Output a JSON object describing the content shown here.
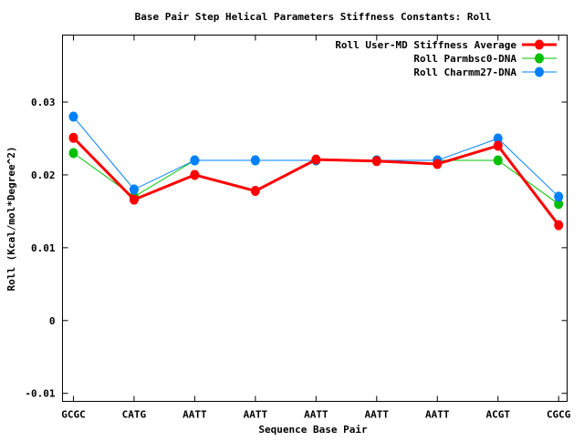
{
  "chart_data": {
    "type": "line",
    "title": "Base Pair Step Helical Parameters Stiffness Constants: Roll",
    "xlabel": "Sequence Base Pair",
    "ylabel": "Roll (Kcal/mol*Degree^2)",
    "categories": [
      "GCGC",
      "CATG",
      "AATT",
      "AATT",
      "AATT",
      "AATT",
      "AATT",
      "ACGT",
      "CGCG"
    ],
    "yticks": [
      -0.01,
      0,
      0.01,
      0.02,
      0.03
    ],
    "ytick_labels": [
      "-0.01",
      "0",
      "0.01",
      "0.02",
      "0.03"
    ],
    "ylim": [
      -0.0111,
      0.0392
    ],
    "grid": false,
    "legend_position": "top-right",
    "series": [
      {
        "name": "Roll User-MD Stiffness Average",
        "color": "#ff0000",
        "width": 3,
        "values": [
          0.0251,
          0.0166,
          0.02,
          0.0178,
          0.0221,
          0.0219,
          0.0215,
          0.024,
          0.0131
        ]
      },
      {
        "name": "Roll Parmbsc0-DNA",
        "color": "#00c000",
        "width": 1,
        "values": [
          0.023,
          0.017,
          0.022,
          0.022,
          0.022,
          0.022,
          0.022,
          0.022,
          0.016
        ]
      },
      {
        "name": "Roll Charmm27-DNA",
        "color": "#0080ff",
        "width": 1,
        "values": [
          0.028,
          0.018,
          0.022,
          0.022,
          0.022,
          0.022,
          0.022,
          0.025,
          0.017
        ]
      }
    ]
  }
}
